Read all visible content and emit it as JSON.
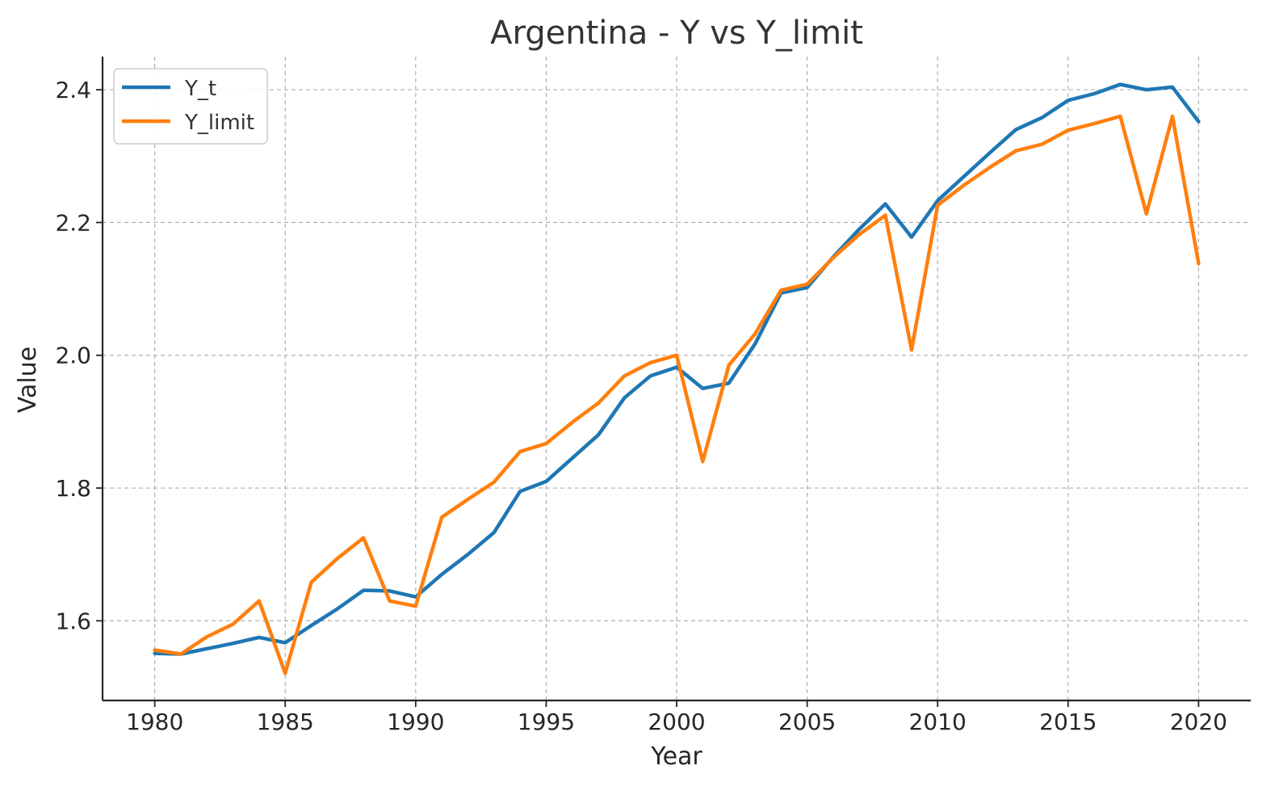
{
  "chart_data": {
    "type": "line",
    "title": "Argentina - Y vs Y_limit",
    "xlabel": "Year",
    "ylabel": "Value",
    "xlim": [
      1978,
      2022
    ],
    "ylim": [
      1.48,
      2.45
    ],
    "xticks": [
      1980,
      1985,
      1990,
      1995,
      2000,
      2005,
      2010,
      2015,
      2020
    ],
    "yticks": [
      1.6,
      1.8,
      2.0,
      2.2,
      2.4
    ],
    "ytick_labels": [
      "1.6",
      "1.8",
      "2.0",
      "2.2",
      "2.4"
    ],
    "grid": true,
    "legend_position": "top-left",
    "x": [
      1980,
      1981,
      1982,
      1983,
      1984,
      1985,
      1986,
      1987,
      1988,
      1989,
      1990,
      1991,
      1992,
      1993,
      1994,
      1995,
      1996,
      1997,
      1998,
      1999,
      2000,
      2001,
      2002,
      2003,
      2004,
      2005,
      2006,
      2007,
      2008,
      2009,
      2010,
      2011,
      2012,
      2013,
      2014,
      2015,
      2016,
      2017,
      2018,
      2019,
      2020
    ],
    "series": [
      {
        "name": "Y_t",
        "color": "#1f77b4",
        "values": [
          1.551,
          1.55,
          1.558,
          1.566,
          1.575,
          1.567,
          1.593,
          1.618,
          1.646,
          1.645,
          1.636,
          1.67,
          1.7,
          1.733,
          1.795,
          1.81,
          1.845,
          1.88,
          1.936,
          1.969,
          1.982,
          1.95,
          1.958,
          2.017,
          2.094,
          2.102,
          2.148,
          2.19,
          2.228,
          2.178,
          2.233,
          2.269,
          2.305,
          2.34,
          2.358,
          2.384,
          2.394,
          2.408,
          2.4,
          2.404,
          2.352
        ]
      },
      {
        "name": "Y_limit",
        "color": "#ff7f0e",
        "values": [
          1.556,
          1.55,
          1.576,
          1.595,
          1.63,
          1.521,
          1.658,
          1.694,
          1.725,
          1.63,
          1.622,
          1.756,
          1.783,
          1.809,
          1.855,
          1.867,
          1.899,
          1.928,
          1.969,
          1.989,
          2.0,
          1.84,
          1.985,
          2.032,
          2.098,
          2.107,
          2.147,
          2.182,
          2.211,
          2.008,
          2.226,
          2.256,
          2.283,
          2.308,
          2.318,
          2.339,
          2.349,
          2.36,
          2.213,
          2.36,
          2.138
        ]
      }
    ]
  }
}
